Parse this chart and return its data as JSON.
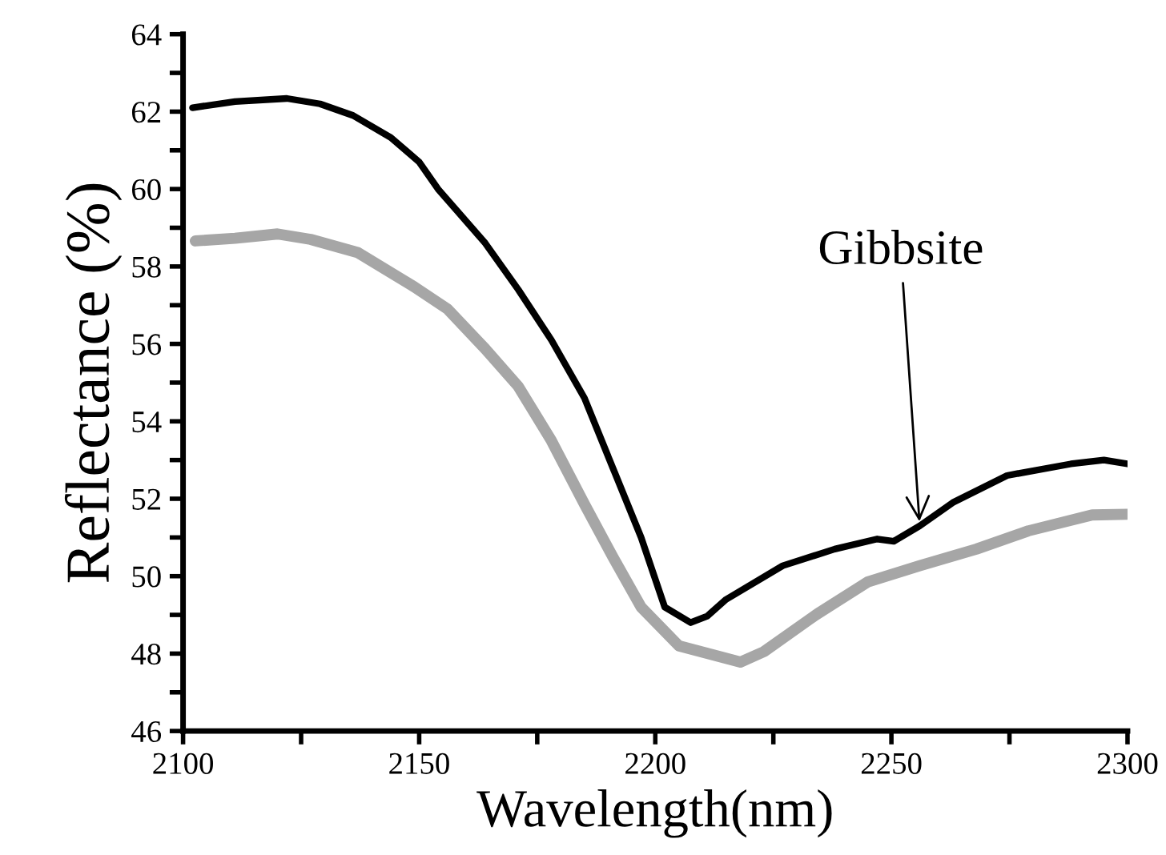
{
  "chart_data": {
    "type": "line",
    "xlabel": "Wavelength(nm)",
    "ylabel": "Reflectance (%)",
    "xlim": [
      2100,
      2300
    ],
    "ylim": [
      46,
      64
    ],
    "xticks": [
      2100,
      {
        "value": 2125,
        "label": null
      },
      2150,
      {
        "value": 2175,
        "label": null
      },
      2200,
      {
        "value": 2225,
        "label": null
      },
      2250,
      {
        "value": 2275,
        "label": null
      },
      2300
    ],
    "yticks": [
      46,
      {
        "value": 47,
        "label": null
      },
      48,
      {
        "value": 49,
        "label": null
      },
      50,
      {
        "value": 51,
        "label": null
      },
      52,
      {
        "value": 53,
        "label": null
      },
      54,
      {
        "value": 55,
        "label": null
      },
      56,
      {
        "value": 57,
        "label": null
      },
      58,
      {
        "value": 59,
        "label": null
      },
      60,
      {
        "value": 61,
        "label": null
      },
      62,
      {
        "value": 63,
        "label": null
      },
      64
    ],
    "grid": false,
    "marker": "none",
    "line_style": "solid",
    "series": [
      {
        "color": "#000000",
        "x": [
          2102,
          2111,
          2122,
          2129,
          2136,
          2144,
          2150,
          2154,
          2164,
          2171,
          2178,
          2185,
          2191,
          2197,
          2202,
          2207.5,
          2211,
          2215,
          2227,
          2238,
          2247,
          2250.5,
          2256,
          2263,
          2274.5,
          2288,
          2295,
          2300
        ],
        "values": [
          62.1,
          62.26,
          62.34,
          62.2,
          61.9,
          61.33,
          60.7,
          60.0,
          58.6,
          57.4,
          56.1,
          54.6,
          52.8,
          51.0,
          49.2,
          48.8,
          48.97,
          49.4,
          50.27,
          50.7,
          50.96,
          50.9,
          51.3,
          51.9,
          52.6,
          52.9,
          53.0,
          52.9
        ]
      },
      {
        "color": "#a6a6a6",
        "x": [
          2102.6,
          2111,
          2120,
          2127,
          2137,
          2149,
          2156,
          2164,
          2171,
          2178,
          2185,
          2191,
          2197,
          2205,
          2218,
          2223,
          2234,
          2245,
          2256,
          2268,
          2279,
          2292.5,
          2300
        ],
        "values": [
          58.66,
          58.73,
          58.84,
          58.7,
          58.36,
          57.47,
          56.9,
          55.87,
          54.9,
          53.5,
          51.86,
          50.5,
          49.2,
          48.2,
          47.78,
          48.05,
          49.0,
          49.85,
          50.27,
          50.7,
          51.17,
          51.58,
          51.6
        ]
      }
    ],
    "annotations": [
      {
        "text": "Gibbsite",
        "x": 2256,
        "y": 51.3
      }
    ]
  }
}
